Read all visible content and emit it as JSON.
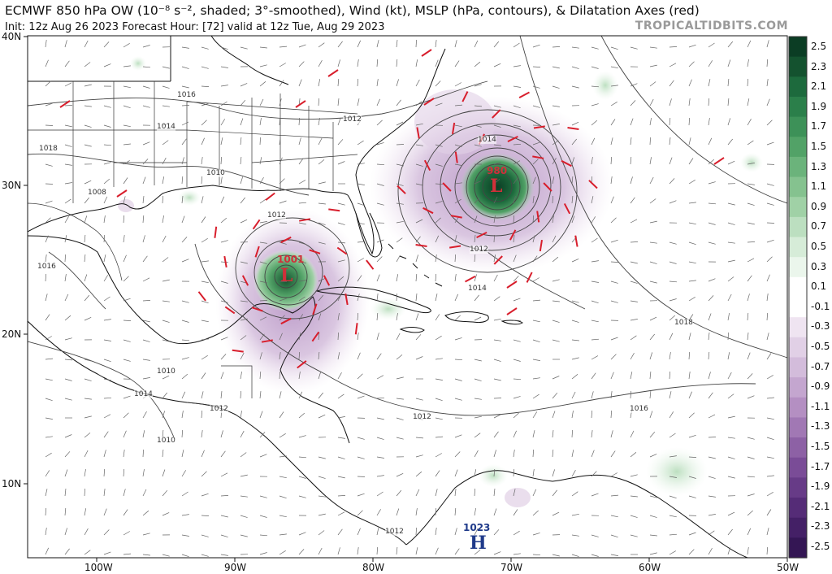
{
  "header": {
    "title": "ECMWF 850 hPa OW (10⁻⁸ s⁻², shaded; 3°-smoothed), Wind (kt), MSLP (hPa, contours), & Dilatation Axes (red)",
    "subtitle": "Init: 12z Aug 26 2023   Forecast Hour: [72]   valid at 12z Tue, Aug 29 2023",
    "brand": "TROPICALTIDBITS.COM"
  },
  "axes": {
    "lat_labels": [
      "40N",
      "30N",
      "20N",
      "10N"
    ],
    "lon_labels": [
      "100W",
      "90W",
      "80W",
      "70W",
      "60W",
      "50W"
    ]
  },
  "colorbar": {
    "labels": [
      "2.5",
      "2.3",
      "2.1",
      "1.9",
      "1.7",
      "1.5",
      "1.3",
      "1.1",
      "0.9",
      "0.7",
      "0.5",
      "0.3",
      "0.1",
      "-0.1",
      "-0.3",
      "-0.5",
      "-0.7",
      "-0.9",
      "-1.1",
      "-1.3",
      "-1.5",
      "-1.7",
      "-1.9",
      "-2.1",
      "-2.3",
      "-2.5"
    ],
    "positive_colors": [
      "#0b3d24",
      "#14522f",
      "#1d6a3d",
      "#2b7f4a",
      "#3d9158",
      "#52a267",
      "#6bb37b",
      "#85c28f",
      "#a0d1a6",
      "#bcdfc0",
      "#d6ecd8",
      "#ebf6ec",
      "#ffffff"
    ],
    "negative_colors": [
      "#ffffff",
      "#efe4f1",
      "#e1d0e6",
      "#d3bcdb",
      "#c4a6cf",
      "#b48fc2",
      "#a178b4",
      "#8d61a5",
      "#7a4c97",
      "#673b87",
      "#552c77",
      "#442066",
      "#341654"
    ]
  },
  "systems": [
    {
      "symbol": "L",
      "pressure": "980",
      "color": "#d0303a"
    },
    {
      "symbol": "L",
      "pressure": "1001",
      "color": "#d0303a"
    },
    {
      "symbol": "H",
      "pressure": "1023",
      "color": "#1f3a8a"
    }
  ],
  "contour_labels": [
    "1016",
    "1014",
    "1018",
    "1012",
    "1010",
    "1008",
    "1012",
    "1014",
    "1018",
    "1016",
    "1010",
    "1014",
    "1012",
    "1012",
    "1010",
    "1012",
    "1016",
    "1014",
    "1012"
  ]
}
